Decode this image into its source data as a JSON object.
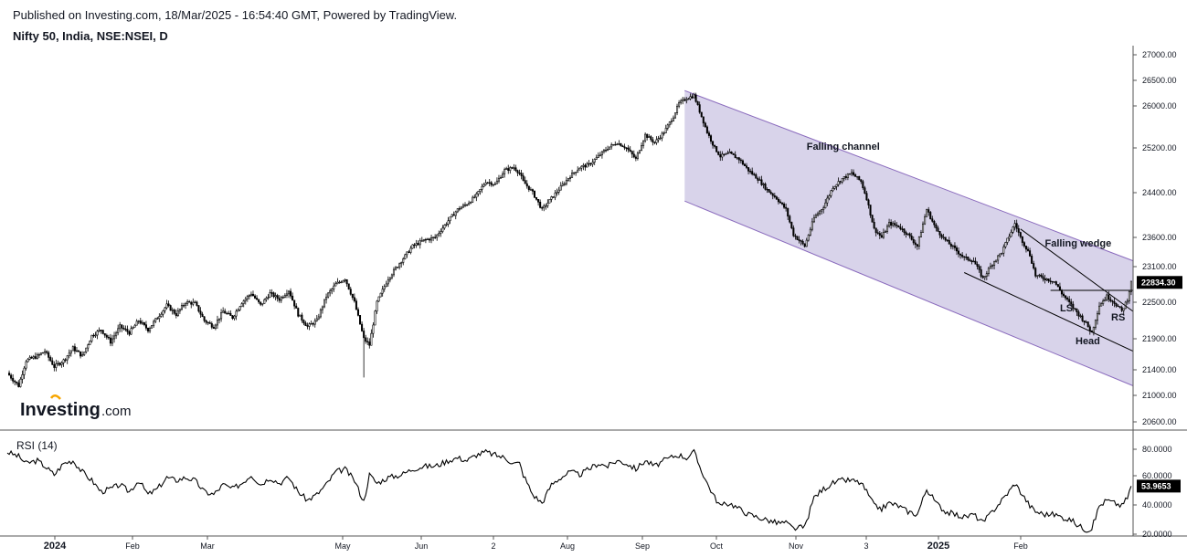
{
  "header": {
    "published": "Published on Investing.com, 18/Mar/2025 - 16:54:40 GMT, Powered by TradingView.",
    "symbol": "Nifty 50, India, NSE:NSEI, D"
  },
  "logo": {
    "name": "Investing",
    "suffix": ".com"
  },
  "colors": {
    "channel_fill": "#d8d3ea",
    "channel_line": "#8a6bbd",
    "candle": "#000000",
    "rsi_line": "#000000"
  },
  "chart_data": [
    {
      "type": "candlestick",
      "title": "",
      "ylim": [
        20400,
        27200
      ],
      "y_ticks": [
        "27000.00",
        "26500.00",
        "26000.00",
        "25200.00",
        "24400.00",
        "23600.00",
        "23100.00",
        "22500.00",
        "21900.00",
        "21400.00",
        "21000.00",
        "20600.00"
      ],
      "x_ticks": [
        {
          "label": "2024",
          "bold": true
        },
        {
          "label": "Feb",
          "bold": false
        },
        {
          "label": "Mar",
          "bold": false
        },
        {
          "label": "May",
          "bold": false
        },
        {
          "label": "Jun",
          "bold": false
        },
        {
          "label": "2",
          "bold": false
        },
        {
          "label": "Aug",
          "bold": false
        },
        {
          "label": "Sep",
          "bold": false
        },
        {
          "label": "Oct",
          "bold": false
        },
        {
          "label": "Nov",
          "bold": false
        },
        {
          "label": "3",
          "bold": false
        },
        {
          "label": "2025",
          "bold": true
        },
        {
          "label": "Feb",
          "bold": false
        }
      ],
      "last_price": "22834.30",
      "annotations": [
        "Falling channel",
        "Falling wedge",
        "LS",
        "Head",
        "RS"
      ],
      "close_path": [
        [
          0,
          21350
        ],
        [
          6,
          21150
        ],
        [
          10,
          21550
        ],
        [
          16,
          21620
        ],
        [
          20,
          21700
        ],
        [
          25,
          21450
        ],
        [
          30,
          21550
        ],
        [
          35,
          21750
        ],
        [
          40,
          21620
        ],
        [
          45,
          21950
        ],
        [
          50,
          22050
        ],
        [
          55,
          21850
        ],
        [
          60,
          22100
        ],
        [
          65,
          22000
        ],
        [
          70,
          22200
        ],
        [
          75,
          22050
        ],
        [
          80,
          22250
        ],
        [
          85,
          22450
        ],
        [
          90,
          22300
        ],
        [
          95,
          22500
        ],
        [
          100,
          22480
        ],
        [
          105,
          22200
        ],
        [
          110,
          22100
        ],
        [
          115,
          22350
        ],
        [
          120,
          22250
        ],
        [
          125,
          22500
        ],
        [
          130,
          22650
        ],
        [
          135,
          22450
        ],
        [
          140,
          22650
        ],
        [
          145,
          22550
        ],
        [
          150,
          22700
        ],
        [
          155,
          22300
        ],
        [
          160,
          22100
        ],
        [
          165,
          22200
        ],
        [
          170,
          22600
        ],
        [
          175,
          22800
        ],
        [
          180,
          22900
        ],
        [
          185,
          22500
        ],
        [
          190,
          21900
        ],
        [
          193,
          21800
        ],
        [
          197,
          22500
        ],
        [
          203,
          22900
        ],
        [
          210,
          23200
        ],
        [
          216,
          23450
        ],
        [
          222,
          23550
        ],
        [
          228,
          23600
        ],
        [
          235,
          23900
        ],
        [
          240,
          24100
        ],
        [
          245,
          24200
        ],
        [
          250,
          24350
        ],
        [
          255,
          24600
        ],
        [
          260,
          24550
        ],
        [
          265,
          24800
        ],
        [
          270,
          24850
        ],
        [
          273,
          24750
        ],
        [
          275,
          24600
        ],
        [
          280,
          24400
        ],
        [
          285,
          24100
        ],
        [
          290,
          24300
        ],
        [
          295,
          24500
        ],
        [
          300,
          24700
        ],
        [
          305,
          24850
        ],
        [
          310,
          24900
        ],
        [
          315,
          25050
        ],
        [
          320,
          25200
        ],
        [
          325,
          25300
        ],
        [
          330,
          25200
        ],
        [
          335,
          25000
        ],
        [
          340,
          25450
        ],
        [
          345,
          25300
        ],
        [
          350,
          25500
        ],
        [
          355,
          25800
        ],
        [
          358,
          26050
        ],
        [
          362,
          26150
        ],
        [
          366,
          26200
        ],
        [
          369,
          25900
        ],
        [
          373,
          25500
        ],
        [
          377,
          25200
        ],
        [
          380,
          25050
        ],
        [
          385,
          25100
        ],
        [
          390,
          25000
        ],
        [
          395,
          24800
        ],
        [
          400,
          24650
        ],
        [
          405,
          24450
        ],
        [
          410,
          24300
        ],
        [
          415,
          24100
        ],
        [
          419,
          23650
        ],
        [
          425,
          23450
        ],
        [
          430,
          23950
        ],
        [
          435,
          24150
        ],
        [
          440,
          24500
        ],
        [
          445,
          24650
        ],
        [
          450,
          24750
        ],
        [
          455,
          24600
        ],
        [
          458,
          24300
        ],
        [
          462,
          23750
        ],
        [
          466,
          23600
        ],
        [
          470,
          23850
        ],
        [
          475,
          23800
        ],
        [
          480,
          23650
        ],
        [
          485,
          23450
        ],
        [
          490,
          24100
        ],
        [
          495,
          23750
        ],
        [
          500,
          23550
        ],
        [
          505,
          23400
        ],
        [
          510,
          23250
        ],
        [
          515,
          23200
        ],
        [
          520,
          22900
        ],
        [
          525,
          23150
        ],
        [
          530,
          23350
        ],
        [
          535,
          23700
        ],
        [
          537,
          23850
        ],
        [
          540,
          23600
        ],
        [
          545,
          23300
        ],
        [
          548,
          22950
        ],
        [
          553,
          22900
        ],
        [
          558,
          22850
        ],
        [
          562,
          22650
        ],
        [
          567,
          22450
        ],
        [
          571,
          22300
        ],
        [
          575,
          22150
        ],
        [
          578,
          22000
        ],
        [
          582,
          22450
        ],
        [
          586,
          22600
        ],
        [
          590,
          22500
        ],
        [
          594,
          22350
        ],
        [
          597,
          22550
        ],
        [
          599,
          22834
        ]
      ]
    },
    {
      "type": "line",
      "title": "RSI (14)",
      "ylim": [
        18,
        88
      ],
      "y_ticks": [
        "80.0000",
        "60.0000",
        "40.0000",
        "20.0000"
      ],
      "last_value": "53.9653",
      "values_path": [
        [
          0,
          78
        ],
        [
          6,
          75
        ],
        [
          10,
          70
        ],
        [
          16,
          72
        ],
        [
          20,
          68
        ],
        [
          25,
          62
        ],
        [
          30,
          70
        ],
        [
          35,
          72
        ],
        [
          40,
          64
        ],
        [
          45,
          58
        ],
        [
          50,
          50
        ],
        [
          55,
          52
        ],
        [
          60,
          55
        ],
        [
          65,
          50
        ],
        [
          70,
          58
        ],
        [
          75,
          48
        ],
        [
          80,
          52
        ],
        [
          85,
          60
        ],
        [
          90,
          58
        ],
        [
          95,
          60
        ],
        [
          100,
          58
        ],
        [
          105,
          50
        ],
        [
          110,
          48
        ],
        [
          115,
          55
        ],
        [
          120,
          52
        ],
        [
          125,
          56
        ],
        [
          130,
          62
        ],
        [
          135,
          55
        ],
        [
          140,
          60
        ],
        [
          145,
          56
        ],
        [
          150,
          60
        ],
        [
          155,
          50
        ],
        [
          160,
          44
        ],
        [
          165,
          48
        ],
        [
          170,
          55
        ],
        [
          175,
          64
        ],
        [
          180,
          66
        ],
        [
          185,
          58
        ],
        [
          190,
          43
        ],
        [
          193,
          62
        ],
        [
          197,
          56
        ],
        [
          203,
          60
        ],
        [
          210,
          62
        ],
        [
          216,
          66
        ],
        [
          222,
          68
        ],
        [
          228,
          68
        ],
        [
          235,
          72
        ],
        [
          240,
          74
        ],
        [
          245,
          72
        ],
        [
          250,
          76
        ],
        [
          255,
          78
        ],
        [
          260,
          76
        ],
        [
          265,
          74
        ],
        [
          270,
          70
        ],
        [
          273,
          70
        ],
        [
          275,
          62
        ],
        [
          280,
          48
        ],
        [
          285,
          42
        ],
        [
          290,
          55
        ],
        [
          295,
          60
        ],
        [
          300,
          64
        ],
        [
          305,
          62
        ],
        [
          310,
          66
        ],
        [
          315,
          70
        ],
        [
          320,
          68
        ],
        [
          325,
          72
        ],
        [
          330,
          70
        ],
        [
          335,
          66
        ],
        [
          340,
          72
        ],
        [
          345,
          68
        ],
        [
          350,
          72
        ],
        [
          355,
          75
        ],
        [
          358,
          76
        ],
        [
          362,
          74
        ],
        [
          366,
          78
        ],
        [
          369,
          68
        ],
        [
          373,
          56
        ],
        [
          377,
          46
        ],
        [
          380,
          40
        ],
        [
          385,
          42
        ],
        [
          390,
          38
        ],
        [
          395,
          34
        ],
        [
          400,
          32
        ],
        [
          405,
          30
        ],
        [
          410,
          28
        ],
        [
          415,
          28
        ],
        [
          419,
          24
        ],
        [
          425,
          25
        ],
        [
          430,
          46
        ],
        [
          435,
          52
        ],
        [
          440,
          56
        ],
        [
          445,
          58
        ],
        [
          450,
          58
        ],
        [
          455,
          56
        ],
        [
          458,
          50
        ],
        [
          462,
          40
        ],
        [
          466,
          38
        ],
        [
          470,
          42
        ],
        [
          475,
          40
        ],
        [
          480,
          36
        ],
        [
          485,
          34
        ],
        [
          490,
          52
        ],
        [
          495,
          42
        ],
        [
          500,
          36
        ],
        [
          505,
          34
        ],
        [
          510,
          32
        ],
        [
          515,
          34
        ],
        [
          520,
          28
        ],
        [
          525,
          36
        ],
        [
          530,
          44
        ],
        [
          535,
          52
        ],
        [
          537,
          56
        ],
        [
          540,
          50
        ],
        [
          545,
          40
        ],
        [
          548,
          36
        ],
        [
          553,
          34
        ],
        [
          558,
          34
        ],
        [
          562,
          32
        ],
        [
          567,
          30
        ],
        [
          571,
          26
        ],
        [
          575,
          23
        ],
        [
          578,
          24
        ],
        [
          582,
          40
        ],
        [
          586,
          44
        ],
        [
          590,
          42
        ],
        [
          594,
          40
        ],
        [
          597,
          46
        ],
        [
          599,
          54
        ]
      ]
    }
  ]
}
